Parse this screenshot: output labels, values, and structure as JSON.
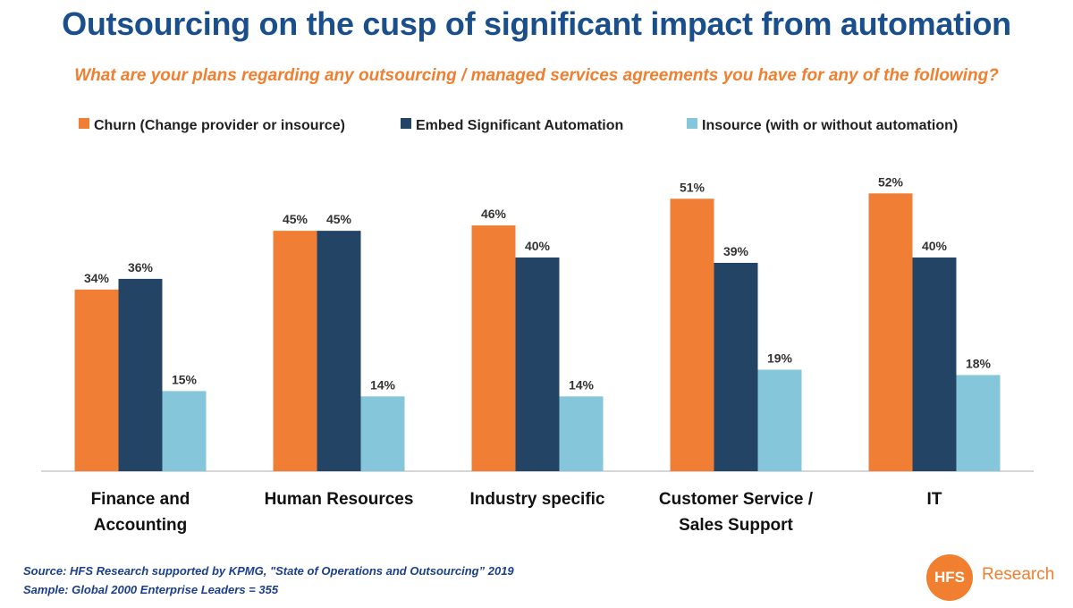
{
  "title": "Outsourcing on the cusp of significant impact from automation",
  "subtitle": "What are your plans regarding any outsourcing / managed services agreements you have for any of the following?",
  "source_line": "Source: HFS Research supported by KPMG, \"State of Operations and Outsourcing” 2019",
  "sample_line": "Sample: Global 2000 Enterprise Leaders = 355",
  "logo": {
    "mark": "HFS",
    "word": "Research"
  },
  "colors": {
    "title": "#1b4f8c",
    "subtitle": "#f07f2f"
  },
  "chart_data": {
    "type": "bar",
    "categories": [
      [
        "Finance and",
        "Accounting"
      ],
      [
        "Human Resources"
      ],
      [
        "Industry specific"
      ],
      [
        "Customer Service /",
        "Sales Support"
      ],
      [
        "IT"
      ]
    ],
    "series": [
      {
        "name": "Churn (Change provider or insource)",
        "color": "#f07f35",
        "values": [
          34,
          45,
          46,
          51,
          52
        ]
      },
      {
        "name": "Embed Significant Automation",
        "color": "#244466",
        "values": [
          36,
          45,
          40,
          39,
          40
        ]
      },
      {
        "name": "Insource (with or without automation)",
        "color": "#86c6da",
        "values": [
          15,
          14,
          14,
          19,
          18
        ]
      }
    ],
    "value_suffix": "%",
    "ylim": [
      0,
      55
    ],
    "legend": "top",
    "grid": false
  }
}
